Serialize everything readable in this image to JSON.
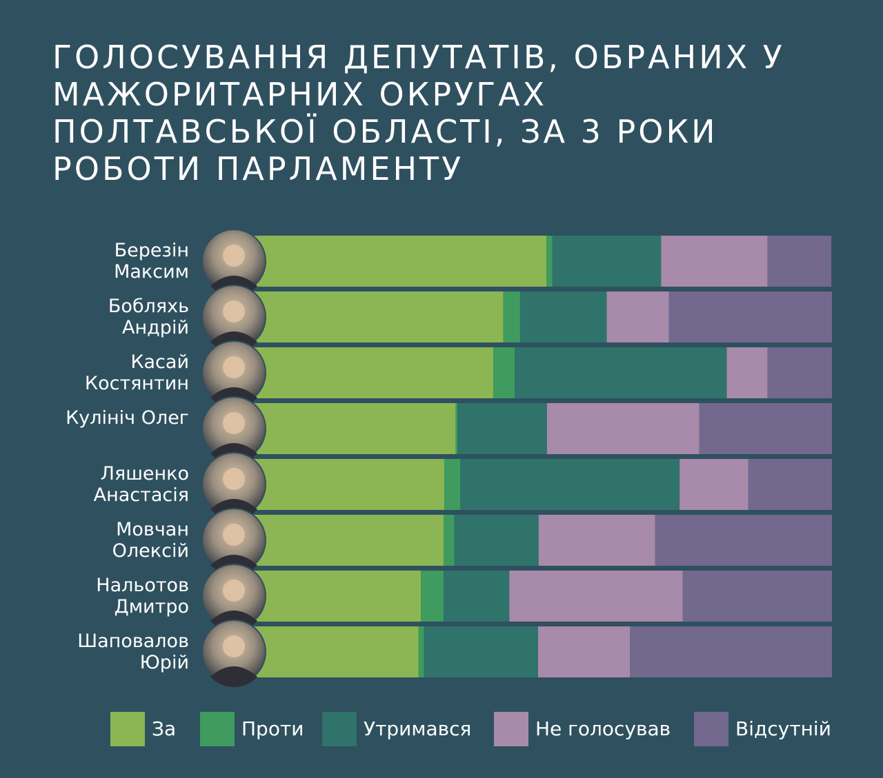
{
  "chart_data": {
    "type": "stacked-bar-horizontal",
    "title": [
      "ГОЛОСУВАННЯ ДЕПУТАТІВ, ОБРАНИХ У",
      "МАЖОРИТАРНИХ ОКРУГАХ",
      "ПОЛТАВСЬКОЇ ОБЛАСТІ, ЗА 3 РОКИ",
      "РОБОТИ ПАРЛАМЕНТУ"
    ],
    "categories": [
      "Березін Максим",
      "Бобляхь Андрій",
      "Касай Костянтин",
      "Кулініч Олег",
      "Ляшенко Анастасія",
      "Мовчан Олексій",
      "Нальотов Дмитро",
      "Шаповалов Юрій"
    ],
    "xlim": [
      0,
      100
    ],
    "series": [
      {
        "name": "За",
        "color": "#8cb653",
        "values": [
          52.2,
          45.0,
          43.3,
          37.0,
          35.1,
          35.0,
          31.2,
          30.8
        ]
      },
      {
        "name": "Проти",
        "color": "#3f9b5e",
        "values": [
          1.0,
          2.8,
          3.6,
          0.3,
          2.7,
          1.8,
          3.8,
          0.9
        ]
      },
      {
        "name": "Утримався",
        "color": "#2f736b",
        "values": [
          18.2,
          14.5,
          35.5,
          15.0,
          36.7,
          14.1,
          11.0,
          19.1
        ]
      },
      {
        "name": "Не голосував",
        "color": "#a88aab",
        "values": [
          17.8,
          10.4,
          6.8,
          25.5,
          11.5,
          19.5,
          29.0,
          15.4
        ]
      },
      {
        "name": "Відсутній",
        "color": "#73688e",
        "values": [
          10.7,
          27.3,
          10.8,
          22.2,
          14.0,
          29.6,
          25.0,
          33.8
        ]
      }
    ]
  }
}
